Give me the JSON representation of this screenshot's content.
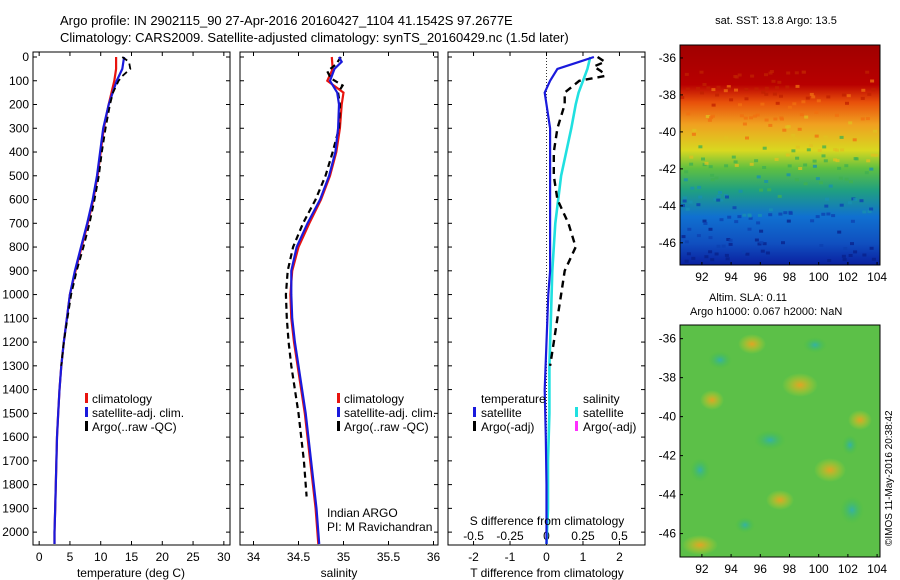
{
  "header": {
    "line1": "Argo profile: IN 2902115_90 27-Apr-2016 20160427_1104 41.1542S 97.2677E",
    "line2": "Climatology: CARS2009. Satellite-adjusted climatology: synTS_20160429.nc (1.5d later)"
  },
  "colors": {
    "climatology": "#e8140f",
    "satellite": "#1a1adc",
    "argo": "#000000",
    "sal_satellite": "#20e0e0",
    "sal_argo": "#ff30ff",
    "sst_dark": "#a00000"
  },
  "depth_axis": {
    "ylim": [
      0,
      2050
    ],
    "ticks": [
      0,
      100,
      200,
      300,
      400,
      500,
      600,
      700,
      800,
      900,
      1000,
      1100,
      1200,
      1300,
      1400,
      1500,
      1600,
      1700,
      1800,
      1900,
      2000
    ]
  },
  "legend_main": {
    "climatology": "climatology",
    "satellite": "satellite-adj. clim.",
    "argo": "Argo(..raw -QC)"
  },
  "legend_diff": {
    "temp_header": "temperature",
    "sal_header": "salinity",
    "satellite": "satellite",
    "argo": "Argo(-adj)"
  },
  "annotation": {
    "line1": "Indian ARGO",
    "line2": "PI: M Ravichandran"
  },
  "side": {
    "sst_title": "sat. SST: 13.8 Argo: 13.5",
    "sla_line1": "Altim. SLA: 0.11",
    "sla_line2": "Argo h1000: 0.067 h2000: NaN",
    "credit": "©IMOS 11-May-2016 20:38:42"
  },
  "chart_data": [
    {
      "type": "line",
      "xlabel": "temperature (deg C)",
      "xlim": [
        -1,
        31
      ],
      "xticks": [
        0,
        5,
        10,
        15,
        20,
        25,
        30
      ],
      "ylim": [
        2050,
        0
      ],
      "series": [
        {
          "name": "climatology",
          "depth": [
            0,
            50,
            100,
            200,
            300,
            400,
            500,
            600,
            700,
            800,
            900,
            1000,
            1100,
            1200,
            1300,
            1400,
            1500,
            1600,
            1700,
            1800,
            1900,
            2000,
            2050
          ],
          "values": [
            12.5,
            12.5,
            12.2,
            11.3,
            10.5,
            10.0,
            9.5,
            8.8,
            7.9,
            6.9,
            5.9,
            5.0,
            4.5,
            4.0,
            3.6,
            3.3,
            3.1,
            2.9,
            2.8,
            2.7,
            2.6,
            2.5,
            2.5
          ]
        },
        {
          "name": "satellite-adj. clim.",
          "depth": [
            0,
            50,
            100,
            200,
            300,
            400,
            500,
            600,
            700,
            800,
            900,
            1000,
            1100,
            1200,
            1300,
            1400,
            1500,
            1600,
            1700,
            1800,
            1900,
            2000,
            2050
          ],
          "values": [
            13.8,
            13.5,
            12.6,
            11.3,
            10.4,
            9.9,
            9.4,
            8.7,
            7.8,
            6.8,
            5.8,
            5.0,
            4.5,
            4.0,
            3.6,
            3.3,
            3.1,
            2.9,
            2.8,
            2.7,
            2.6,
            2.5,
            2.5
          ]
        },
        {
          "name": "Argo(..raw -QC)",
          "depth": [
            0,
            20,
            50,
            80,
            100,
            150,
            200,
            300,
            400,
            500,
            600,
            700,
            800,
            900,
            1000,
            1100,
            1200,
            1300
          ],
          "values": [
            13.5,
            14.6,
            14.8,
            13.5,
            12.9,
            12.0,
            11.5,
            10.8,
            10.2,
            9.7,
            9.0,
            8.2,
            7.2,
            6.1,
            5.2,
            4.6,
            4.0,
            3.6
          ]
        }
      ]
    },
    {
      "type": "line",
      "xlabel": "salinity",
      "xlim": [
        33.85,
        36.05
      ],
      "xticks": [
        34,
        34.5,
        35,
        35.5,
        36
      ],
      "ylim": [
        2050,
        0
      ],
      "series": [
        {
          "name": "climatology",
          "depth": [
            0,
            50,
            100,
            150,
            200,
            300,
            400,
            500,
            600,
            700,
            800,
            900,
            1000,
            1100,
            1200,
            1300,
            1400,
            1500,
            1600,
            1700,
            1800,
            1900,
            2000,
            2050
          ],
          "values": [
            34.87,
            34.88,
            34.82,
            35.0,
            34.98,
            34.96,
            34.92,
            34.85,
            34.75,
            34.62,
            34.5,
            34.43,
            34.41,
            34.42,
            34.45,
            34.49,
            34.53,
            34.57,
            34.6,
            34.63,
            34.66,
            34.69,
            34.71,
            34.72
          ]
        },
        {
          "name": "satellite-adj. clim.",
          "depth": [
            0,
            20,
            50,
            100,
            150,
            200,
            300,
            400,
            500,
            600,
            700,
            800,
            900,
            1000,
            1100,
            1200,
            1300,
            1400,
            1500,
            1600,
            1700,
            1800,
            1900,
            2000,
            2050
          ],
          "values": [
            34.95,
            34.98,
            34.9,
            34.85,
            34.93,
            34.95,
            34.94,
            34.91,
            34.84,
            34.74,
            34.6,
            34.48,
            34.42,
            34.42,
            34.43,
            34.46,
            34.5,
            34.54,
            34.58,
            34.61,
            34.64,
            34.67,
            34.7,
            34.72,
            34.73
          ]
        },
        {
          "name": "Argo(..raw -QC)",
          "depth": [
            0,
            30,
            60,
            90,
            120,
            150,
            200,
            300,
            400,
            500,
            600,
            700,
            800,
            900,
            1000,
            1100,
            1200,
            1300,
            1400,
            1500,
            1600,
            1700,
            1800,
            1850
          ],
          "values": [
            34.97,
            34.92,
            34.82,
            34.86,
            34.99,
            34.94,
            34.96,
            34.95,
            34.88,
            34.8,
            34.69,
            34.55,
            34.44,
            34.38,
            34.36,
            34.37,
            34.39,
            34.42,
            34.46,
            34.5,
            34.53,
            34.56,
            34.58,
            34.59
          ]
        }
      ]
    },
    {
      "type": "line",
      "xlabel": "T difference from climatology",
      "top_label": "S difference from climatology",
      "xlim": [
        -2.7,
        2.7
      ],
      "xticks": [
        -2,
        -1,
        0,
        1,
        2
      ],
      "sal_ticks": [
        -0.5,
        -0.25,
        0,
        0.25,
        0.5
      ],
      "ylim": [
        2050,
        0
      ],
      "series": [
        {
          "name": "temperature satellite",
          "depth": [
            0,
            20,
            50,
            100,
            150,
            200,
            250,
            300,
            400,
            500,
            600,
            700,
            800,
            900,
            1000,
            1200,
            1400,
            1600,
            1800,
            2000,
            2050
          ],
          "values": [
            1.3,
            0.9,
            0.3,
            0.1,
            -0.05,
            0.0,
            0.05,
            0.1,
            0.1,
            0.1,
            0.1,
            0.1,
            0.1,
            0.1,
            0.05,
            0.0,
            -0.05,
            -0.02,
            0.0,
            0.0,
            0.0
          ]
        },
        {
          "name": "temperature Argo(-adj)",
          "depth": [
            0,
            20,
            40,
            60,
            80,
            100,
            150,
            200,
            300,
            400,
            500,
            600,
            700,
            800,
            900,
            1000,
            1100,
            1200,
            1300
          ],
          "values": [
            1.4,
            1.6,
            1.3,
            1.5,
            1.6,
            0.9,
            0.5,
            0.5,
            0.3,
            0.2,
            0.2,
            0.3,
            0.6,
            0.8,
            0.5,
            0.4,
            0.3,
            0.2,
            0.1
          ]
        },
        {
          "name": "salinity satellite",
          "depth": [
            0,
            50,
            100,
            150,
            200,
            300,
            500,
            700,
            900,
            1100,
            1300,
            1500,
            1700,
            1900,
            2050
          ],
          "values": [
            0.3,
            0.28,
            0.25,
            0.22,
            0.2,
            0.17,
            0.1,
            0.06,
            0.04,
            0.03,
            0.02,
            0.02,
            0.01,
            0.01,
            0.0
          ]
        }
      ]
    },
    {
      "type": "heatmap",
      "title": "sat. SST: 13.8 Argo: 13.5",
      "xticks": [
        92,
        94,
        96,
        98,
        100,
        102,
        104
      ],
      "yticks": [
        -36,
        -38,
        -40,
        -42,
        -44,
        -46
      ],
      "xlim": [
        90.5,
        104.2
      ],
      "ylim": [
        -47.2,
        -35.3
      ]
    },
    {
      "type": "heatmap",
      "title": "Altim. SLA: 0.11",
      "xticks": [
        92,
        94,
        96,
        98,
        100,
        102,
        104
      ],
      "yticks": [
        -36,
        -38,
        -40,
        -42,
        -44,
        -46
      ],
      "xlim": [
        90.5,
        104.2
      ],
      "ylim": [
        -47.2,
        -35.3
      ]
    }
  ]
}
